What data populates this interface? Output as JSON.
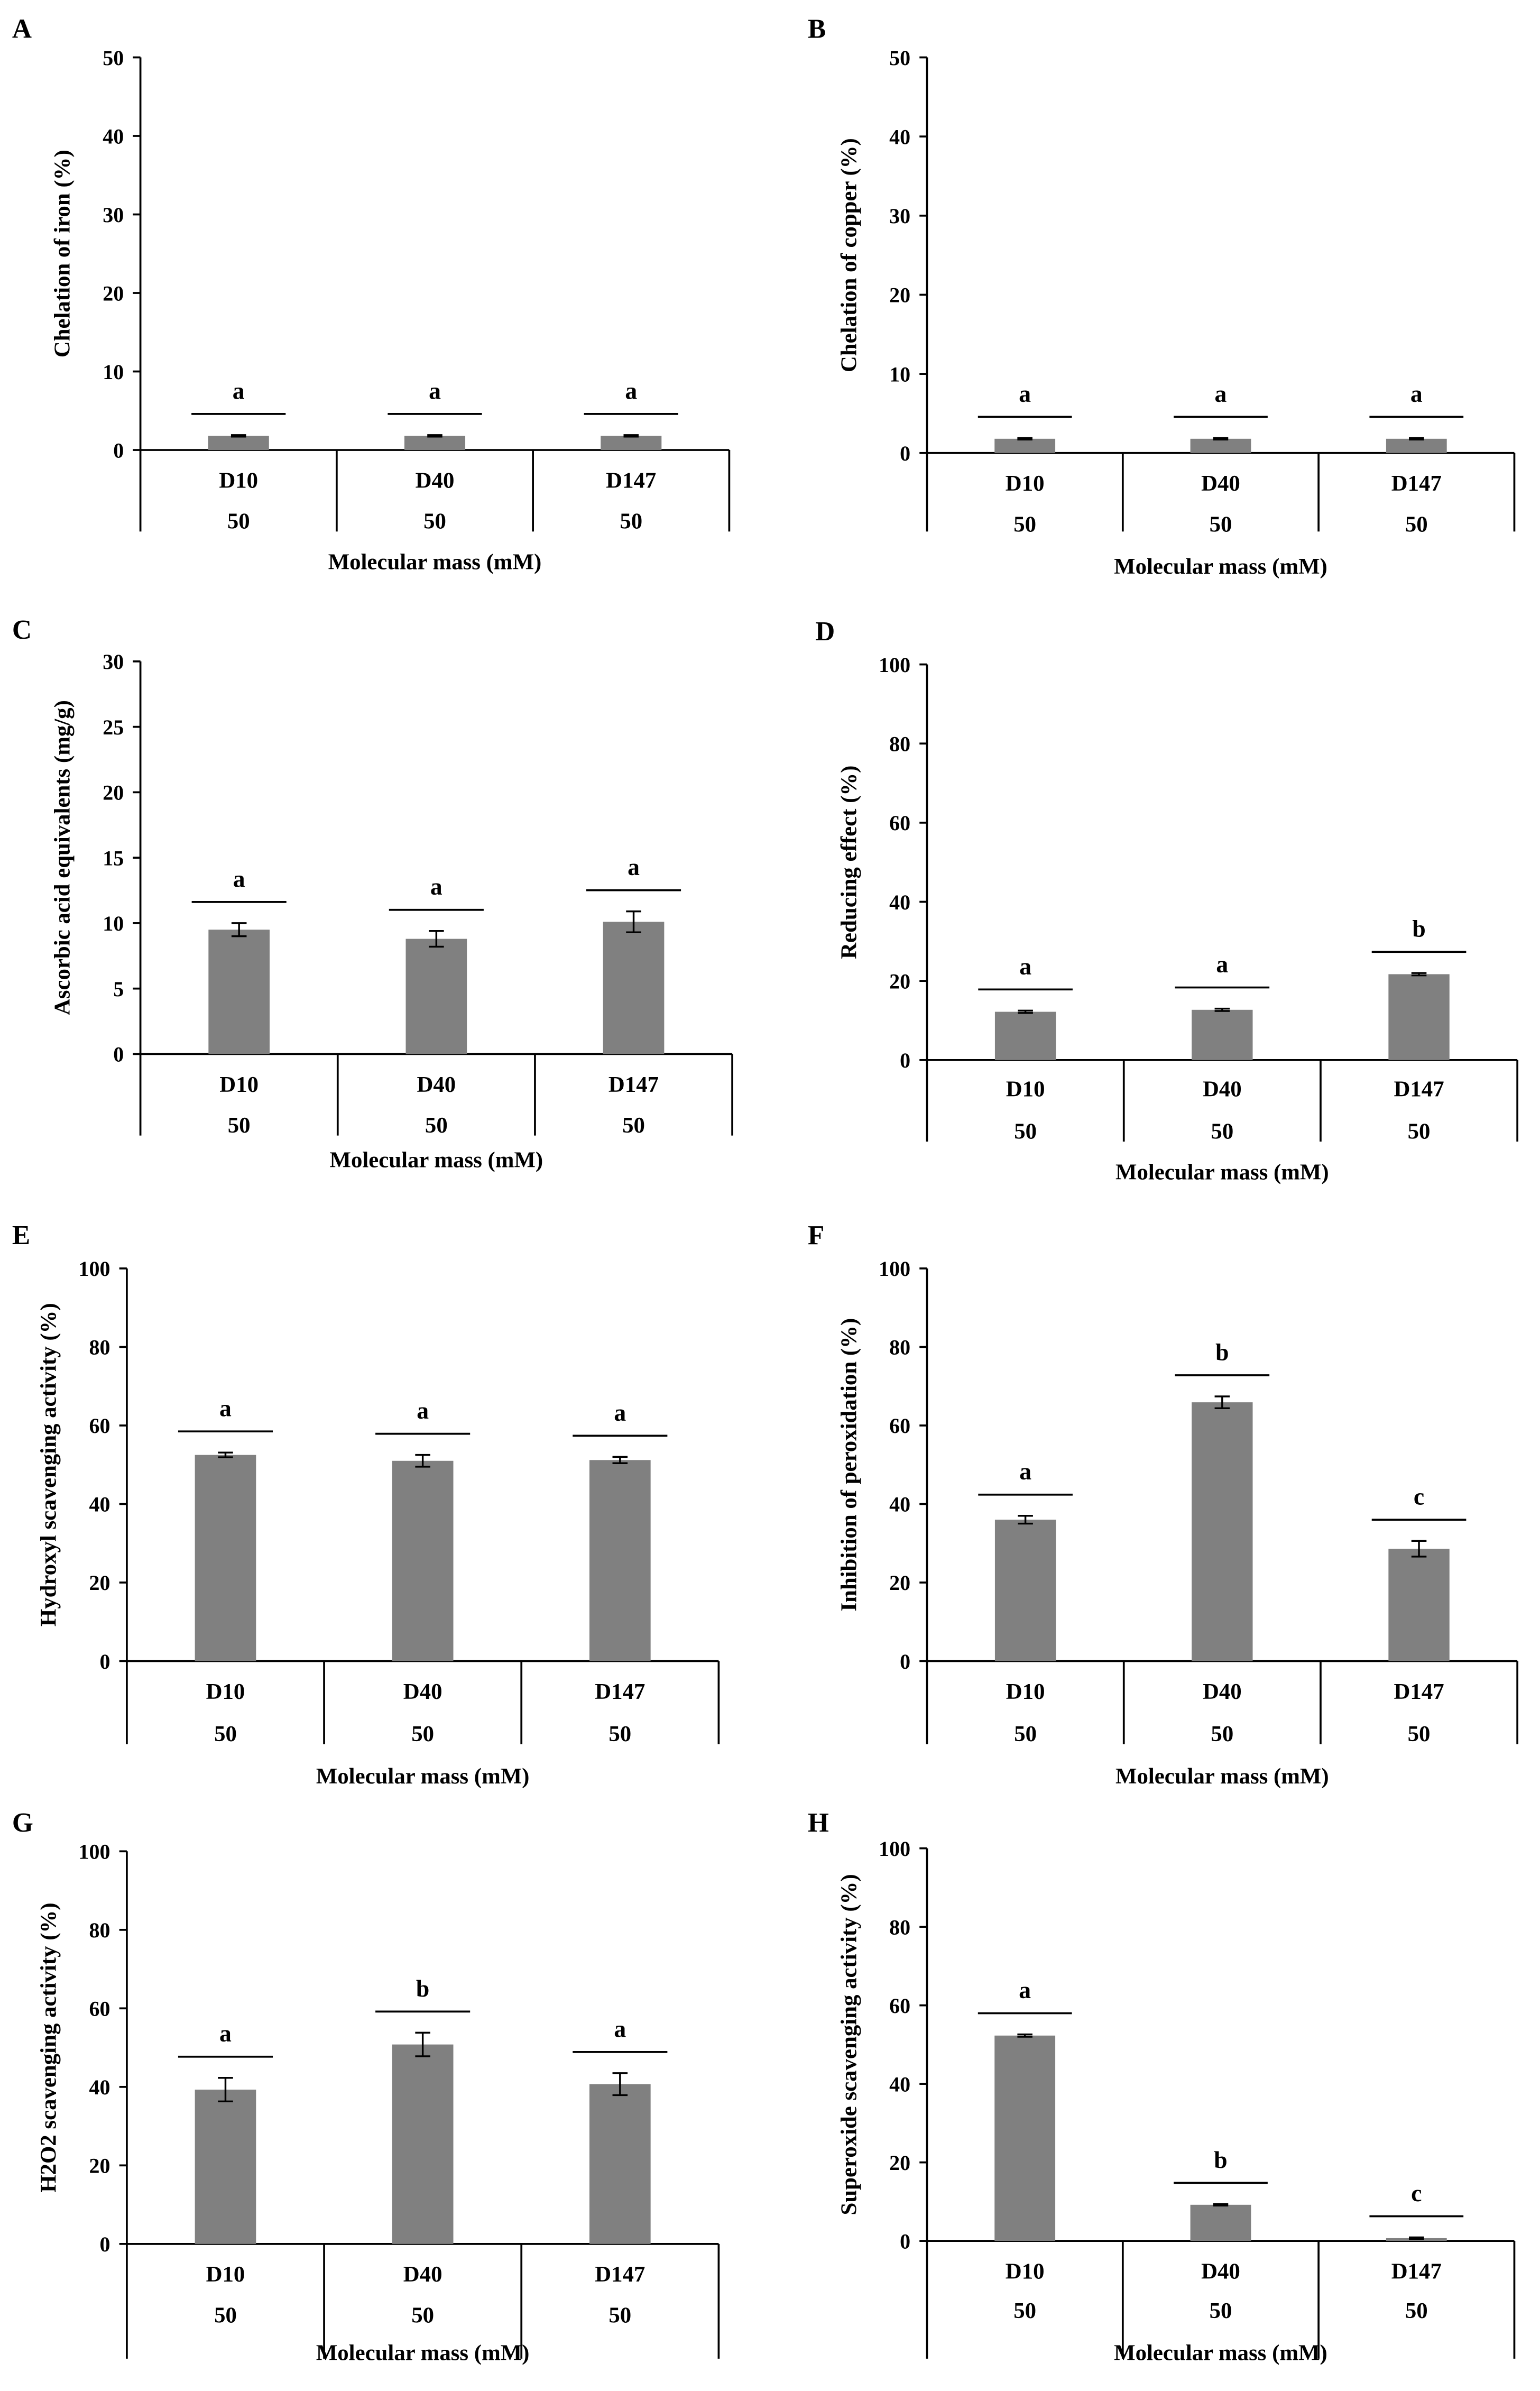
{
  "figure": {
    "panels": [
      {
        "id": "A",
        "letter": "A"
      },
      {
        "id": "B",
        "letter": "B"
      },
      {
        "id": "C",
        "letter": "C"
      },
      {
        "id": "D",
        "letter": "D"
      },
      {
        "id": "E",
        "letter": "E"
      },
      {
        "id": "F",
        "letter": "F"
      },
      {
        "id": "G",
        "letter": "G"
      },
      {
        "id": "H",
        "letter": "H"
      }
    ]
  },
  "colors": {
    "bar": "#808080",
    "axis": "#000000",
    "text": "#000000"
  },
  "chart_data": [
    {
      "panel": "A",
      "type": "bar",
      "categories": [
        "D10",
        "D40",
        "D147"
      ],
      "sublabels": [
        "50",
        "50",
        "50"
      ],
      "values": [
        1.8,
        1.8,
        1.8
      ],
      "errors": [
        0.1,
        0.1,
        0.1
      ],
      "letters": [
        "a",
        "a",
        "a"
      ],
      "ylabel": "Chelation of iron (%)",
      "xlabel": "Molecular mass (mM)",
      "ylim": [
        0,
        50
      ],
      "yticks": [
        0,
        10,
        20,
        30,
        40,
        50
      ]
    },
    {
      "panel": "B",
      "type": "bar",
      "categories": [
        "D10",
        "D40",
        "D147"
      ],
      "sublabels": [
        "50",
        "50",
        "50"
      ],
      "values": [
        1.8,
        1.8,
        1.8
      ],
      "errors": [
        0.1,
        0.1,
        0.1
      ],
      "letters": [
        "a",
        "a",
        "a"
      ],
      "ylabel": "Chelation of copper (%)",
      "xlabel": "Molecular mass (mM)",
      "ylim": [
        0,
        50
      ],
      "yticks": [
        0,
        10,
        20,
        30,
        40,
        50
      ]
    },
    {
      "panel": "C",
      "type": "bar",
      "categories": [
        "D10",
        "D40",
        "D147"
      ],
      "sublabels": [
        "50",
        "50",
        "50"
      ],
      "values": [
        9.5,
        8.8,
        10.1
      ],
      "errors": [
        0.5,
        0.6,
        0.8
      ],
      "letters": [
        "a",
        "a",
        "a"
      ],
      "ylabel": "Ascorbic acid equivalents (mg/g)",
      "xlabel": "Molecular mass (mM)",
      "ylim": [
        0,
        30
      ],
      "yticks": [
        0,
        5,
        10,
        15,
        20,
        25,
        30
      ]
    },
    {
      "panel": "D",
      "type": "bar",
      "categories": [
        "D10",
        "D40",
        "D147"
      ],
      "sublabels": [
        "50",
        "50",
        "50"
      ],
      "values": [
        12.2,
        12.7,
        21.7
      ],
      "errors": [
        0.3,
        0.3,
        0.3
      ],
      "letters": [
        "a",
        "a",
        "b"
      ],
      "ylabel": "Reducing effect (%)",
      "xlabel": "Molecular mass (mM)",
      "ylim": [
        0,
        100
      ],
      "yticks": [
        0,
        20,
        40,
        60,
        80,
        100
      ]
    },
    {
      "panel": "E",
      "type": "bar",
      "categories": [
        "D10",
        "D40",
        "D147"
      ],
      "sublabels": [
        "50",
        "50",
        "50"
      ],
      "values": [
        52.5,
        51.0,
        51.2
      ],
      "errors": [
        0.6,
        1.5,
        0.8
      ],
      "letters": [
        "a",
        "a",
        "a"
      ],
      "ylabel": "Hydroxyl scavenging activity (%)",
      "xlabel": "Molecular mass (mM)",
      "ylim": [
        0,
        100
      ],
      "yticks": [
        0,
        20,
        40,
        60,
        80,
        100
      ]
    },
    {
      "panel": "F",
      "type": "bar",
      "categories": [
        "D10",
        "D40",
        "D147"
      ],
      "sublabels": [
        "50",
        "50",
        "50"
      ],
      "values": [
        36.0,
        65.9,
        28.6
      ],
      "errors": [
        1.0,
        1.5,
        2.0
      ],
      "letters": [
        "a",
        "b",
        "c"
      ],
      "ylabel": "Inhibition of peroxidation (%)",
      "xlabel": "Molecular mass (mM)",
      "ylim": [
        0,
        100
      ],
      "yticks": [
        0,
        20,
        40,
        60,
        80,
        100
      ]
    },
    {
      "panel": "G",
      "type": "bar",
      "categories": [
        "D10",
        "D40",
        "D147"
      ],
      "sublabels": [
        "50",
        "50",
        "50"
      ],
      "values": [
        39.3,
        50.8,
        40.7
      ],
      "errors": [
        3.0,
        3.0,
        2.8
      ],
      "letters": [
        "a",
        "b",
        "a"
      ],
      "ylabel": "H2O2 scavenging activity (%)",
      "xlabel": "Molecular mass (mM)",
      "ylim": [
        0,
        100
      ],
      "yticks": [
        0,
        20,
        40,
        60,
        80,
        100
      ]
    },
    {
      "panel": "H",
      "type": "bar",
      "categories": [
        "D10",
        "D40",
        "D147"
      ],
      "sublabels": [
        "50",
        "50",
        "50"
      ],
      "values": [
        52.3,
        9.2,
        0.7
      ],
      "errors": [
        0.3,
        0.2,
        0.2
      ],
      "letters": [
        "a",
        "b",
        "c"
      ],
      "ylabel": "Superoxide scavenging activity (%)",
      "xlabel": "Molecular mass (mM)",
      "ylim": [
        0,
        100
      ],
      "yticks": [
        0,
        20,
        40,
        60,
        80,
        100
      ]
    }
  ]
}
